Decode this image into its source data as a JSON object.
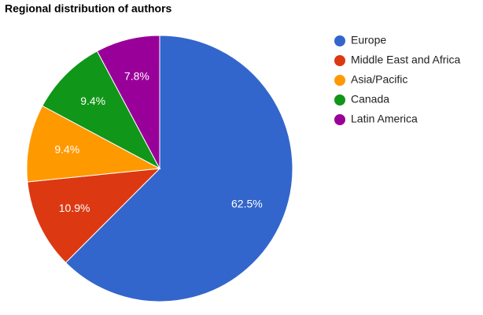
{
  "chart_data": {
    "type": "pie",
    "title": "Regional distribution of authors",
    "categories": [
      "Europe",
      "Middle East and Africa",
      "Asia/Pacific",
      "Canada",
      "Latin America"
    ],
    "values": [
      62.5,
      10.9,
      9.4,
      9.4,
      7.8
    ],
    "value_labels": [
      "62.5%",
      "10.9%",
      "9.4%",
      "9.4%",
      "7.8%"
    ],
    "colors": [
      "#3366cc",
      "#dc3912",
      "#ff9900",
      "#109618",
      "#990099"
    ],
    "legend": "right"
  }
}
